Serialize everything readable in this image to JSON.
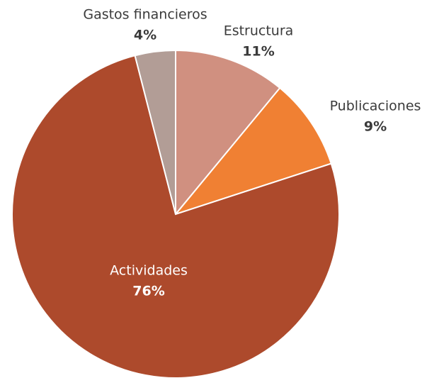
{
  "chart_data": {
    "type": "pie",
    "categories": [
      "Estructura",
      "Publicaciones",
      "Actividades",
      "Gastos financieros"
    ],
    "values": [
      11,
      9,
      76,
      4
    ],
    "value_labels": [
      "11%",
      "9%",
      "76%",
      "4%"
    ],
    "colors": [
      "#d09080",
      "#f08033",
      "#ad4a2c",
      "#b29d96"
    ]
  }
}
